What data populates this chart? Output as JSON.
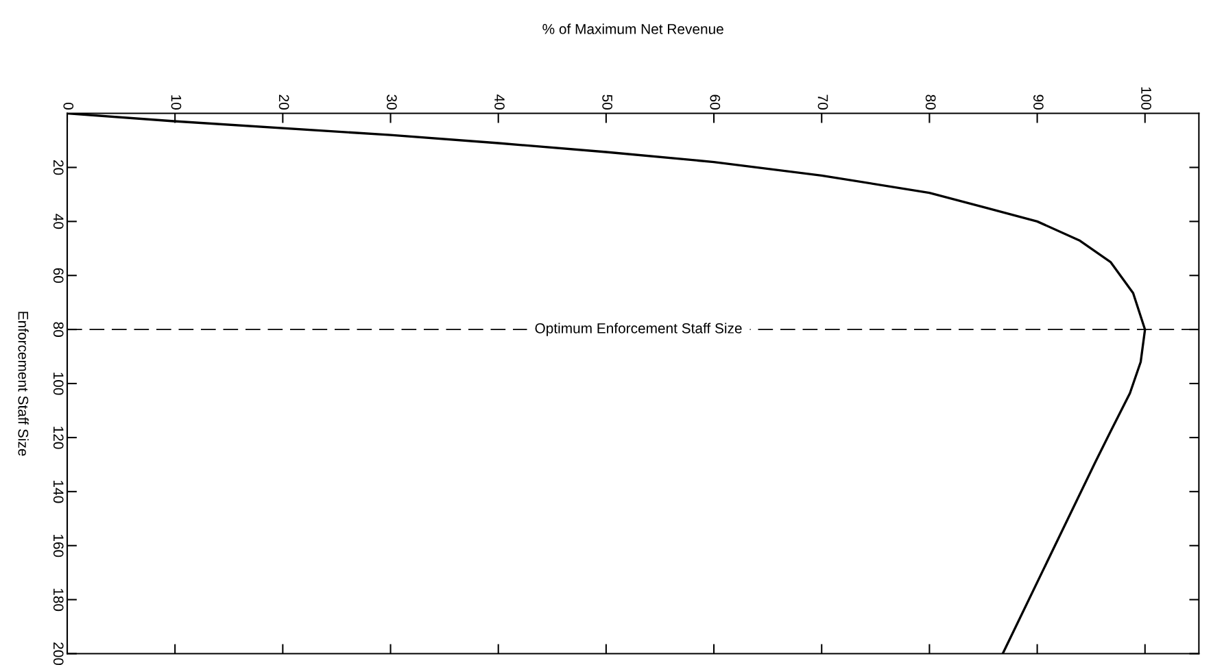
{
  "chart_data": {
    "type": "line",
    "xlabel": "% of Maximum Net Revenue",
    "ylabel": "Enforcement Staff Size",
    "xlim": [
      0,
      105
    ],
    "xticks": [
      0,
      10,
      20,
      30,
      40,
      50,
      60,
      70,
      80,
      90,
      100
    ],
    "ylim": [
      200,
      0
    ],
    "yticks": [
      20,
      40,
      60,
      80,
      100,
      120,
      140,
      160,
      180,
      200
    ],
    "series": [
      {
        "color": "#000000",
        "x": [
          0,
          9.9,
          30,
          40,
          50,
          60,
          70,
          80,
          85.3,
          90,
          93.9,
          96.8,
          98.9,
          100,
          99.6,
          98.6,
          96.8,
          95.4,
          86.8
        ],
        "values": [
          0,
          2.9,
          8,
          11,
          14.3,
          18,
          23,
          29.4,
          35,
          40,
          47,
          55,
          66.5,
          80,
          92,
          103.6,
          117.8,
          129,
          200
        ]
      }
    ],
    "ref_lines": [
      {
        "axis": "y",
        "value": 80,
        "label": "Optimum Enforcement Staff Size",
        "line_style": "dashed",
        "color": "#000000"
      }
    ],
    "grid": false,
    "legend": false,
    "marker": "none",
    "line_style": "solid"
  }
}
